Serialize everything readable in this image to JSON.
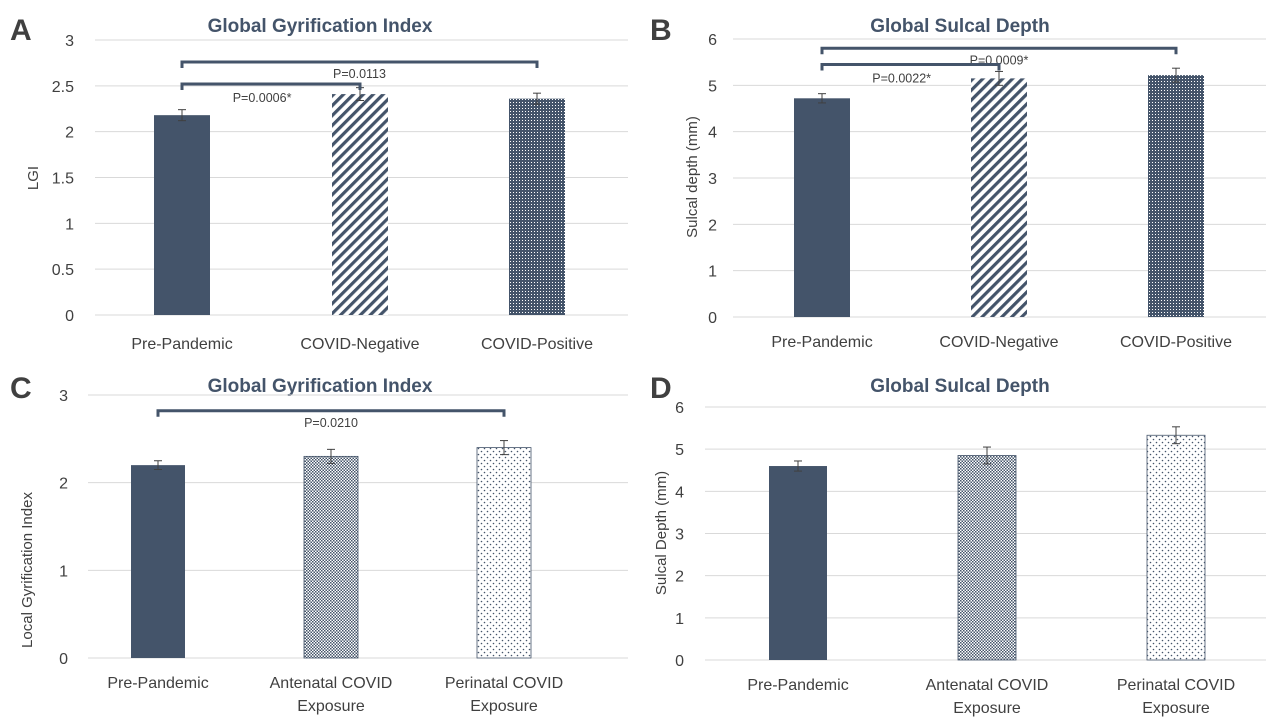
{
  "colors": {
    "dark_bar": "#44546a",
    "grid": "#d9d9d9",
    "text": "#404040",
    "bracket": "#44546a"
  },
  "chart_data": [
    {
      "panel": "A",
      "type": "bar",
      "title": "Global Gyrification Index",
      "ylabel": "LGI",
      "xlabel": "",
      "ylim": [
        0,
        3
      ],
      "yticks": [
        "0",
        "0.5",
        "1",
        "1.5",
        "2",
        "2.5",
        "3"
      ],
      "grid": true,
      "categories": [
        "Pre-Pandemic",
        "COVID-Negative",
        "COVID-Positive"
      ],
      "values": [
        2.18,
        2.41,
        2.36
      ],
      "errors": [
        0.06,
        0.07,
        0.06
      ],
      "patterns": [
        "solid",
        "diagonal",
        "dense-dots"
      ],
      "annotations": [
        {
          "from": 0,
          "to": 2,
          "label": "P=0.0113",
          "level": 2.76
        },
        {
          "from": 0,
          "to": 1,
          "label": "P=0.0006*",
          "level": 2.52
        }
      ]
    },
    {
      "panel": "B",
      "type": "bar",
      "title": "Global Sulcal Depth",
      "ylabel": "Sulcal depth (mm)",
      "xlabel": "",
      "ylim": [
        0,
        6
      ],
      "yticks": [
        "0",
        "1",
        "2",
        "3",
        "4",
        "5",
        "6"
      ],
      "grid": true,
      "categories": [
        "Pre-Pandemic",
        "COVID-Negative",
        "COVID-Positive"
      ],
      "values": [
        4.72,
        5.15,
        5.22
      ],
      "errors": [
        0.1,
        0.15,
        0.15
      ],
      "patterns": [
        "solid",
        "diagonal",
        "dense-dots"
      ],
      "annotations": [
        {
          "from": 0,
          "to": 2,
          "label": "P=0.0009*",
          "level": 5.8
        },
        {
          "from": 0,
          "to": 1,
          "label": "P=0.0022*",
          "level": 5.45
        }
      ]
    },
    {
      "panel": "C",
      "type": "bar",
      "title": "Global Gyrification Index",
      "ylabel": "Local Gyrification Index",
      "xlabel": "",
      "ylim": [
        0,
        3
      ],
      "yticks": [
        "0",
        "1",
        "2",
        "3"
      ],
      "grid": true,
      "categories": [
        [
          "Pre-Pandemic"
        ],
        [
          "Antenatal COVID",
          "Exposure"
        ],
        [
          "Perinatal COVID",
          "Exposure"
        ]
      ],
      "values": [
        2.2,
        2.3,
        2.4
      ],
      "errors": [
        0.05,
        0.08,
        0.08
      ],
      "patterns": [
        "solid",
        "medium-dots",
        "sparse-dots"
      ],
      "annotations": [
        {
          "from": 0,
          "to": 2,
          "label": "P=0.0210",
          "level": 2.82
        }
      ]
    },
    {
      "panel": "D",
      "type": "bar",
      "title": "Global Sulcal Depth",
      "ylabel": "Sulcal Depth (mm)",
      "xlabel": "",
      "ylim": [
        0,
        6
      ],
      "yticks": [
        "0",
        "1",
        "2",
        "3",
        "4",
        "5",
        "6"
      ],
      "grid": true,
      "categories": [
        [
          "Pre-Pandemic"
        ],
        [
          "Antenatal COVID",
          "Exposure"
        ],
        [
          "Perinatal COVID",
          "Exposure"
        ]
      ],
      "values": [
        4.6,
        4.85,
        5.33
      ],
      "errors": [
        0.12,
        0.2,
        0.2
      ],
      "patterns": [
        "solid",
        "medium-dots",
        "sparse-dots"
      ],
      "annotations": []
    }
  ]
}
